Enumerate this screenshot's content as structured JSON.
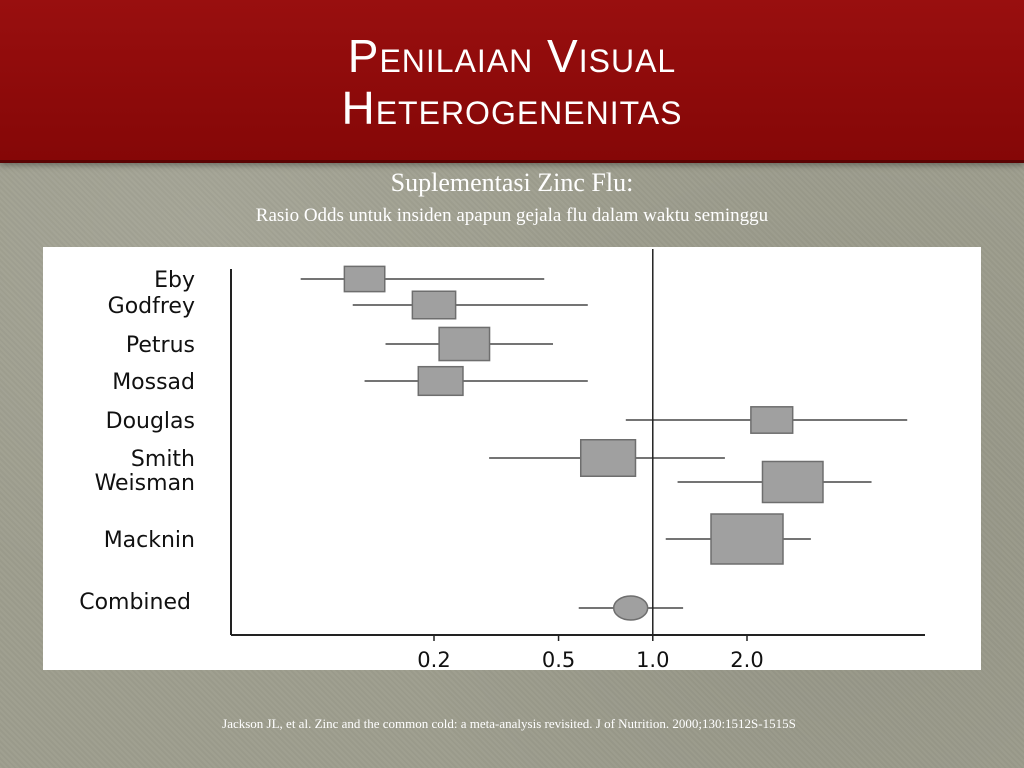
{
  "slide": {
    "title_lines": [
      "Penilaian Visual",
      "Heterogenenitas"
    ],
    "subtitle": "Suplementasi Zinc Flu:",
    "subsubtitle": "Rasio Odds untuk insiden apapun gejala flu dalam waktu seminggu",
    "citation": "Jackson JL, et al.  Zinc and the common cold: a meta-analysis revisited. J of Nutrition. 2000;130:1512S-1515S"
  },
  "colors": {
    "title_band": "#8e0a0a",
    "background": "#9e9e8e",
    "marker_fill": "#a0a0a0",
    "marker_stroke": "#6e6e6e",
    "line": "#222222"
  },
  "chart_data": {
    "type": "forest",
    "xscale": "log",
    "xticks": [
      0.2,
      0.5,
      1.0,
      2.0
    ],
    "xtick_labels": [
      "0.2",
      "0.5",
      "1.0",
      "2.0"
    ],
    "reference_line": 1.0,
    "xlim": [
      0.07,
      6.5
    ],
    "studies": [
      {
        "name": "Eby",
        "or": 0.12,
        "ci": [
          0.075,
          0.45
        ],
        "weight": 0.5
      },
      {
        "name": "Godfrey",
        "or": 0.2,
        "ci": [
          0.11,
          0.62
        ],
        "weight": 0.6
      },
      {
        "name": "Petrus",
        "or": 0.25,
        "ci": [
          0.14,
          0.48
        ],
        "weight": 0.85
      },
      {
        "name": "Mossad",
        "or": 0.21,
        "ci": [
          0.12,
          0.62
        ],
        "weight": 0.65
      },
      {
        "name": "Douglas",
        "or": 2.4,
        "ci": [
          0.82,
          6.5
        ],
        "weight": 0.55
      },
      {
        "name": "Smith",
        "or": 0.72,
        "ci": [
          0.3,
          1.7
        ],
        "weight": 1.0
      },
      {
        "name": "Weisman",
        "or": 2.8,
        "ci": [
          1.2,
          5.0
        ],
        "weight": 1.2
      },
      {
        "name": "Macknin",
        "or": 2.0,
        "ci": [
          1.1,
          3.2
        ],
        "weight": 1.6
      }
    ],
    "combined": {
      "name": "Combined",
      "or": 0.85,
      "ci": [
        0.58,
        1.25
      ]
    }
  }
}
